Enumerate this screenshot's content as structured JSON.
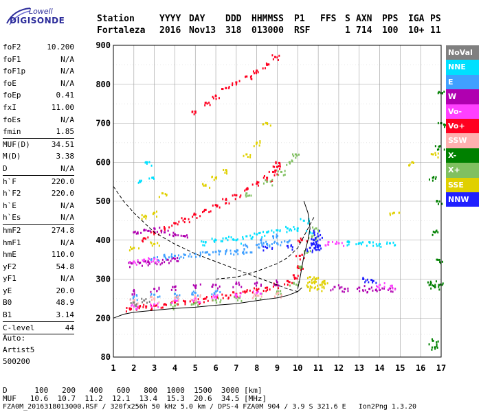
{
  "logo": {
    "line1": "Lowell",
    "line2": "DIGISONDE"
  },
  "header": {
    "labels": [
      "Station",
      "YYYY",
      "DAY",
      "DDD",
      "HHMMSS",
      "P1",
      "FFS",
      "S",
      "AXN",
      "PPS",
      "IGA",
      "PS"
    ],
    "values": [
      "Fortaleza",
      "2016",
      "Nov13",
      "318",
      "013000",
      "RSF",
      "1",
      "714",
      "100",
      "10+",
      "11"
    ]
  },
  "parameters": [
    {
      "group": [
        {
          "key": "foF2",
          "value": "10.200"
        },
        {
          "key": "foF1",
          "value": "N/A"
        },
        {
          "key": "foF1p",
          "value": "N/A"
        },
        {
          "key": "foE",
          "value": "N/A"
        },
        {
          "key": "foEp",
          "value": "0.41"
        },
        {
          "key": "fxI",
          "value": "11.00"
        },
        {
          "key": "foEs",
          "value": "N/A"
        },
        {
          "key": "fmin",
          "value": "1.85"
        }
      ]
    },
    {
      "group": [
        {
          "key": "MUF(D)",
          "value": "34.51"
        },
        {
          "key": "M(D)",
          "value": "3.38"
        },
        {
          "key": "D",
          "value": "N/A"
        }
      ]
    },
    {
      "group": [
        {
          "key": "h`F",
          "value": "220.0"
        },
        {
          "key": "h`F2",
          "value": "220.0"
        },
        {
          "key": "h`E",
          "value": "N/A"
        },
        {
          "key": "h`Es",
          "value": "N/A"
        }
      ]
    },
    {
      "group": [
        {
          "key": "hmF2",
          "value": "274.8"
        },
        {
          "key": "hmF1",
          "value": "N/A"
        },
        {
          "key": "hmE",
          "value": "110.0"
        },
        {
          "key": "yF2",
          "value": "54.8"
        },
        {
          "key": "yF1",
          "value": "N/A"
        },
        {
          "key": "yE",
          "value": "20.0"
        },
        {
          "key": "B0",
          "value": "48.9"
        },
        {
          "key": "B1",
          "value": "3.14"
        }
      ]
    },
    {
      "group": [
        {
          "key": "C-level",
          "value": "44"
        }
      ]
    }
  ],
  "auto": [
    "Auto:",
    "Artist5",
    "500200"
  ],
  "footer": {
    "row_d": {
      "label": "D",
      "values": [
        "100",
        "200",
        "400",
        "600",
        "800",
        "1000",
        "1500",
        "3000"
      ],
      "unit": "[km]"
    },
    "row_muf": {
      "label": "MUF",
      "values": [
        "10.6",
        "10.7",
        "11.2",
        "12.1",
        "13.4",
        "15.3",
        "20.6",
        "34.5"
      ],
      "unit": "[MHz]"
    },
    "info": "FZA0M_2016318013000.RSF / 320fx256h 50 kHz 5.0 km / DPS-4 FZA0M 904 / 3.9 S 321.6 E   Ion2Png 1.3.20"
  },
  "legend": [
    {
      "label": "NoVal",
      "color": "#808080"
    },
    {
      "label": "NNE",
      "color": "#00e0ff"
    },
    {
      "label": "E",
      "color": "#40a0ff"
    },
    {
      "label": "W",
      "color": "#b000b0"
    },
    {
      "label": "Vo-",
      "color": "#ff40ff"
    },
    {
      "label": "Vo+",
      "color": "#ff0020"
    },
    {
      "label": "SSW",
      "color": "#ffb0b0"
    },
    {
      "label": "X-",
      "color": "#008000"
    },
    {
      "label": "X+",
      "color": "#80c060"
    },
    {
      "label": "SSE",
      "color": "#e0d000"
    },
    {
      "label": "NNW",
      "color": "#2020ff"
    }
  ],
  "chart_data": {
    "type": "scatter",
    "title": "",
    "xlabel": "",
    "ylabel": "",
    "xlim": [
      1,
      17
    ],
    "ylim": [
      80,
      900
    ],
    "x_ticks": [
      1,
      2,
      3,
      4,
      5,
      6,
      7,
      8,
      9,
      10,
      11,
      12,
      13,
      14,
      15,
      16,
      17
    ],
    "y_ticks": [
      80,
      200,
      300,
      400,
      500,
      600,
      700,
      800,
      900
    ],
    "grid": true,
    "legend_position": "right",
    "series": [
      {
        "name": "Vo+",
        "color": "#ff0020",
        "points": [
          [
            1.8,
            225
          ],
          [
            2.2,
            228
          ],
          [
            2.6,
            230
          ],
          [
            3.0,
            232
          ],
          [
            3.5,
            235
          ],
          [
            4.0,
            240
          ],
          [
            4.5,
            243
          ],
          [
            5.0,
            246
          ],
          [
            5.5,
            250
          ],
          [
            6.0,
            255
          ],
          [
            6.5,
            258
          ],
          [
            7.0,
            262
          ],
          [
            7.5,
            268
          ],
          [
            8.0,
            272
          ],
          [
            8.5,
            278
          ],
          [
            9.0,
            285
          ],
          [
            9.5,
            295
          ],
          [
            9.8,
            310
          ],
          [
            10.0,
            330
          ],
          [
            10.1,
            360
          ],
          [
            10.2,
            400
          ],
          [
            2.5,
            405
          ],
          [
            3.0,
            418
          ],
          [
            3.5,
            430
          ],
          [
            4.0,
            443
          ],
          [
            4.5,
            455
          ],
          [
            5.0,
            466
          ],
          [
            5.5,
            478
          ],
          [
            6.0,
            490
          ],
          [
            6.5,
            503
          ],
          [
            7.0,
            515
          ],
          [
            7.5,
            530
          ],
          [
            8.0,
            545
          ],
          [
            8.5,
            560
          ],
          [
            8.8,
            575
          ],
          [
            9.0,
            588
          ],
          [
            9.1,
            598
          ],
          [
            5.0,
            730
          ],
          [
            5.5,
            752
          ],
          [
            6.0,
            770
          ],
          [
            6.5,
            790
          ],
          [
            7.0,
            805
          ],
          [
            7.5,
            820
          ],
          [
            8.0,
            835
          ],
          [
            8.5,
            850
          ],
          [
            8.9,
            870
          ]
        ]
      },
      {
        "name": "X+",
        "color": "#80c060",
        "points": [
          [
            4.0,
            232
          ],
          [
            5.0,
            238
          ],
          [
            6.0,
            246
          ],
          [
            7.0,
            252
          ],
          [
            8.0,
            258
          ],
          [
            9.0,
            268
          ],
          [
            9.8,
            290
          ],
          [
            10.2,
            330
          ],
          [
            10.5,
            370
          ],
          [
            10.7,
            410
          ],
          [
            10.9,
            430
          ],
          [
            7.5,
            520
          ],
          [
            8.5,
            550
          ],
          [
            9.2,
            575
          ],
          [
            9.6,
            600
          ],
          [
            9.9,
            620
          ]
        ]
      },
      {
        "name": "W",
        "color": "#b000b0",
        "points": [
          [
            1.9,
            340
          ],
          [
            2.3,
            342
          ],
          [
            2.7,
            344
          ],
          [
            3.2,
            347
          ],
          [
            3.6,
            350
          ],
          [
            4.0,
            352
          ],
          [
            2.0,
            420
          ],
          [
            2.5,
            425
          ],
          [
            3.0,
            430
          ],
          [
            3.5,
            420
          ],
          [
            4.0,
            415
          ],
          [
            4.5,
            410
          ],
          [
            2.0,
            270
          ],
          [
            3.0,
            275
          ],
          [
            4.0,
            280
          ],
          [
            5.0,
            282
          ],
          [
            6.0,
            285
          ],
          [
            7.0,
            288
          ],
          [
            8.0,
            290
          ],
          [
            9.0,
            292
          ],
          [
            13.0,
            278
          ],
          [
            13.5,
            275
          ],
          [
            14.0,
            272
          ],
          [
            14.5,
            276
          ],
          [
            11.8,
            280
          ],
          [
            12.3,
            275
          ]
        ]
      },
      {
        "name": "E",
        "color": "#40a0ff",
        "points": [
          [
            3.0,
            355
          ],
          [
            3.5,
            358
          ],
          [
            4.0,
            360
          ],
          [
            4.5,
            362
          ],
          [
            5.0,
            365
          ],
          [
            5.5,
            368
          ],
          [
            6.0,
            370
          ],
          [
            6.5,
            372
          ],
          [
            7.0,
            370
          ],
          [
            7.5,
            368
          ],
          [
            7.5,
            385
          ],
          [
            8.0,
            388
          ],
          [
            8.5,
            390
          ],
          [
            9.0,
            392
          ],
          [
            9.5,
            395
          ],
          [
            8.2,
            400
          ],
          [
            8.8,
            410
          ],
          [
            2.0,
            255
          ],
          [
            3.0,
            260
          ],
          [
            4.0,
            262
          ],
          [
            5.0,
            265
          ],
          [
            6.0,
            268
          ]
        ]
      },
      {
        "name": "NNE",
        "color": "#00e0ff",
        "points": [
          [
            5.5,
            395
          ],
          [
            6.0,
            400
          ],
          [
            6.5,
            405
          ],
          [
            7.0,
            400
          ],
          [
            7.5,
            410
          ],
          [
            8.0,
            415
          ],
          [
            8.5,
            420
          ],
          [
            9.0,
            425
          ],
          [
            9.5,
            430
          ],
          [
            10.0,
            430
          ],
          [
            10.3,
            450
          ],
          [
            10.6,
            420
          ],
          [
            12.5,
            395
          ],
          [
            13.0,
            392
          ],
          [
            13.5,
            395
          ],
          [
            14.0,
            390
          ],
          [
            14.5,
            392
          ],
          [
            2.3,
            550
          ],
          [
            2.6,
            600
          ],
          [
            2.9,
            560
          ]
        ]
      },
      {
        "name": "NNW",
        "color": "#2020ff",
        "points": [
          [
            10.6,
            380
          ],
          [
            10.7,
            390
          ],
          [
            10.8,
            400
          ],
          [
            10.9,
            395
          ],
          [
            11.0,
            410
          ],
          [
            10.8,
            420
          ],
          [
            11.0,
            385
          ],
          [
            10.9,
            375
          ],
          [
            8.5,
            380
          ],
          [
            9.5,
            385
          ],
          [
            13.2,
            300
          ],
          [
            13.6,
            298
          ]
        ]
      },
      {
        "name": "Vo-",
        "color": "#ff40ff",
        "points": [
          [
            2.0,
            230
          ],
          [
            3.0,
            235
          ],
          [
            4.0,
            245
          ],
          [
            5.0,
            250
          ],
          [
            6.0,
            255
          ],
          [
            7.0,
            260
          ],
          [
            8.0,
            265
          ],
          [
            2.0,
            345
          ],
          [
            2.5,
            350
          ],
          [
            3.0,
            352
          ],
          [
            11.5,
            395
          ],
          [
            12.0,
            392
          ],
          [
            14.0,
            285
          ],
          [
            14.6,
            283
          ]
        ]
      },
      {
        "name": "SSE",
        "color": "#e0d000",
        "points": [
          [
            10.5,
            280
          ],
          [
            10.7,
            290
          ],
          [
            10.9,
            300
          ],
          [
            11.1,
            285
          ],
          [
            11.3,
            295
          ],
          [
            10.6,
            305
          ],
          [
            11.0,
            275
          ],
          [
            2.5,
            460
          ],
          [
            3.0,
            470
          ],
          [
            3.4,
            520
          ],
          [
            5.5,
            540
          ],
          [
            6.0,
            560
          ],
          [
            6.5,
            580
          ],
          [
            7.5,
            620
          ],
          [
            8.0,
            650
          ],
          [
            8.5,
            700
          ],
          [
            2.0,
            380
          ],
          [
            3.0,
            390
          ],
          [
            14.7,
            470
          ],
          [
            15.6,
            600
          ],
          [
            16.6,
            620
          ]
        ]
      },
      {
        "name": "X-",
        "color": "#008000",
        "points": [
          [
            16.5,
            290
          ],
          [
            16.7,
            280
          ],
          [
            16.9,
            285
          ],
          [
            16.8,
            350
          ],
          [
            16.7,
            420
          ],
          [
            16.6,
            560
          ],
          [
            16.9,
            640
          ],
          [
            17.0,
            700
          ],
          [
            16.9,
            780
          ],
          [
            16.8,
            500
          ],
          [
            16.7,
            110
          ],
          [
            16.6,
            130
          ]
        ]
      },
      {
        "name": "SSW",
        "color": "#ffb0b0",
        "points": [
          [
            2.0,
            245
          ],
          [
            3.0,
            250
          ],
          [
            4.0,
            252
          ],
          [
            5.0,
            255
          ],
          [
            8.0,
            258
          ],
          [
            9.0,
            262
          ]
        ]
      },
      {
        "name": "NoVal",
        "color": "#808080",
        "points": [
          [
            2.0,
            240
          ],
          [
            2.5,
            245
          ]
        ]
      }
    ],
    "lines": [
      {
        "style": "solid",
        "points": [
          [
            1,
            200
          ],
          [
            1.5,
            210
          ],
          [
            2,
            215
          ],
          [
            3,
            220
          ],
          [
            4,
            225
          ],
          [
            5,
            228
          ],
          [
            6,
            233
          ],
          [
            7,
            237
          ],
          [
            8,
            245
          ],
          [
            9,
            252
          ],
          [
            9.5,
            258
          ],
          [
            10,
            268
          ],
          [
            10.2,
            278
          ]
        ]
      },
      {
        "style": "dashed",
        "points": [
          [
            1,
            538
          ],
          [
            1.5,
            500
          ],
          [
            2,
            470
          ],
          [
            2.5,
            445
          ],
          [
            3,
            420
          ],
          [
            4,
            390
          ],
          [
            5,
            365
          ],
          [
            6,
            345
          ],
          [
            7,
            325
          ],
          [
            8,
            305
          ],
          [
            9,
            285
          ],
          [
            9.5,
            275
          ],
          [
            10,
            268
          ]
        ]
      },
      {
        "style": "dashed",
        "points": [
          [
            6,
            300
          ],
          [
            7,
            305
          ],
          [
            8,
            320
          ],
          [
            9,
            340
          ],
          [
            9.5,
            355
          ],
          [
            10,
            380
          ],
          [
            10.2,
            400
          ],
          [
            10.5,
            430
          ],
          [
            10.8,
            460
          ]
        ]
      },
      {
        "style": "solid",
        "points": [
          [
            10.0,
            275
          ],
          [
            10.1,
            300
          ],
          [
            10.2,
            330
          ],
          [
            10.3,
            360
          ],
          [
            10.5,
            400
          ],
          [
            10.6,
            430
          ],
          [
            10.5,
            470
          ],
          [
            10.3,
            500
          ]
        ]
      }
    ]
  }
}
